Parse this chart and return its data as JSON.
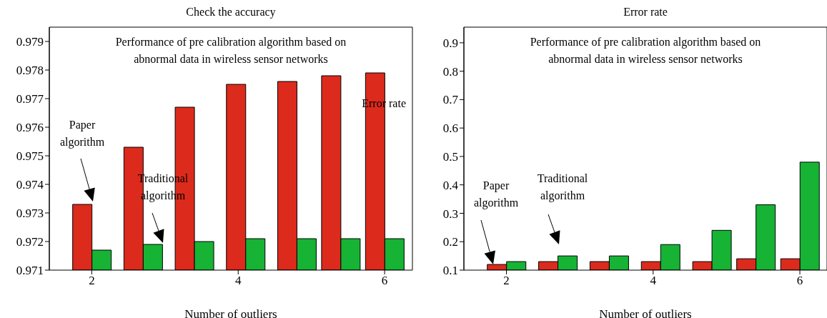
{
  "chart_data": [
    {
      "type": "bar",
      "title": "Check the accuracy",
      "subtitle": "Performance of pre calibration algorithm based on abnormal data in wireless sensor networks",
      "xlabel": "Number of outliers",
      "x": [
        2,
        2.7,
        3.4,
        4.1,
        4.8,
        5.4,
        6
      ],
      "series": [
        {
          "color": "#dc2a1c",
          "values": [
            0.9733,
            0.9753,
            0.9767,
            0.9775,
            0.9776,
            0.9778,
            0.9779
          ]
        },
        {
          "color": "#16b335",
          "values": [
            0.9717,
            0.9719,
            0.972,
            0.9721,
            0.9721,
            0.9721,
            0.9721
          ]
        }
      ],
      "xlim": [
        1.42,
        6.38
      ],
      "xticks": [
        2,
        4,
        6
      ],
      "ylim": [
        0.971,
        0.9795
      ],
      "yticks": [
        0.971,
        0.972,
        0.973,
        0.974,
        0.975,
        0.976,
        0.977,
        0.978,
        0.979
      ],
      "annotations": [
        "Paper algorithm",
        "Traditional algorithm",
        "Error rate"
      ],
      "grid": false,
      "legend": false
    },
    {
      "type": "bar",
      "title": "Error rate",
      "subtitle": "Performance of pre calibration algorithm based on abnormal data in wireless sensor networks",
      "xlabel": "Number of outliers",
      "x": [
        2,
        2.7,
        3.4,
        4.1,
        4.8,
        5.4,
        6
      ],
      "series": [
        {
          "color": "#dc2a1c",
          "values": [
            0.12,
            0.13,
            0.13,
            0.13,
            0.13,
            0.14,
            0.14
          ]
        },
        {
          "color": "#16b335",
          "values": [
            0.13,
            0.15,
            0.15,
            0.19,
            0.24,
            0.33,
            0.48
          ]
        }
      ],
      "xlim": [
        1.42,
        6.37
      ],
      "xticks": [
        2,
        4,
        6
      ],
      "ylim": [
        0.1,
        0.955
      ],
      "yticks": [
        0.1,
        0.2,
        0.3,
        0.4,
        0.5,
        0.6,
        0.7,
        0.8,
        0.9
      ],
      "annotations": [
        "Paper algorithm",
        "Traditional algorithm"
      ],
      "grid": false,
      "legend": false
    }
  ]
}
